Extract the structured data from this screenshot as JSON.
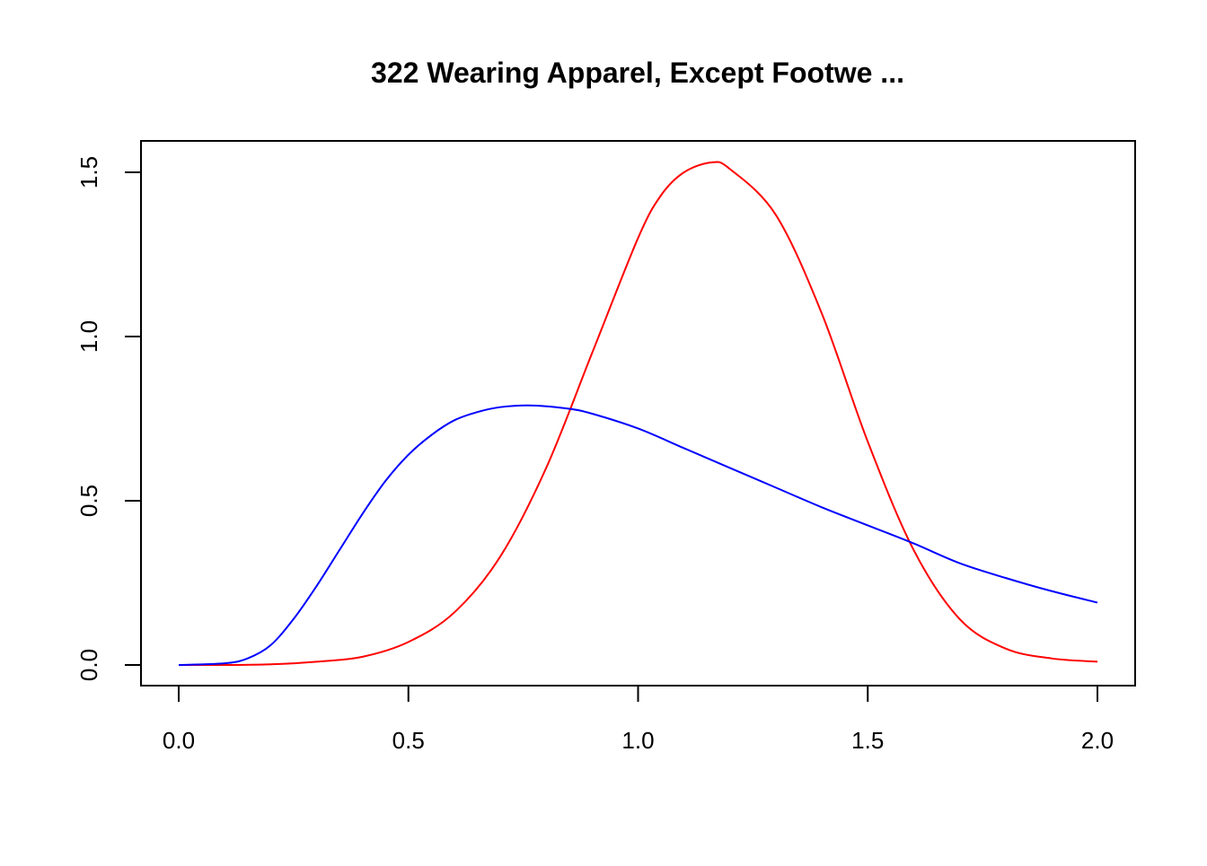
{
  "chart_data": {
    "type": "line",
    "title": "322 Wearing Apparel, Except Footwe ...",
    "xlabel": "",
    "ylabel": "",
    "xlim": [
      0.0,
      2.0
    ],
    "ylim": [
      0.0,
      1.5
    ],
    "x_ticks": [
      "0.0",
      "0.5",
      "1.0",
      "1.5",
      "2.0"
    ],
    "y_ticks": [
      "0.0",
      "0.5",
      "1.0",
      "1.5"
    ],
    "grid": false,
    "legend": "none",
    "series": [
      {
        "color": "#ff0000",
        "x": [
          0.0,
          0.1,
          0.2,
          0.3,
          0.4,
          0.5,
          0.6,
          0.7,
          0.8,
          0.9,
          1.0,
          1.05,
          1.1,
          1.16,
          1.2,
          1.3,
          1.4,
          1.5,
          1.6,
          1.7,
          1.8,
          1.9,
          2.0
        ],
        "y": [
          0.0,
          0.0,
          0.002,
          0.01,
          0.025,
          0.07,
          0.16,
          0.33,
          0.6,
          0.95,
          1.3,
          1.43,
          1.5,
          1.53,
          1.51,
          1.37,
          1.07,
          0.68,
          0.35,
          0.14,
          0.05,
          0.02,
          0.01
        ]
      },
      {
        "color": "#0000ff",
        "x": [
          0.0,
          0.1,
          0.15,
          0.2,
          0.25,
          0.3,
          0.35,
          0.4,
          0.45,
          0.5,
          0.55,
          0.6,
          0.65,
          0.7,
          0.77,
          0.85,
          0.9,
          1.0,
          1.1,
          1.2,
          1.3,
          1.4,
          1.5,
          1.6,
          1.7,
          1.8,
          1.9,
          2.0
        ],
        "y": [
          0.0,
          0.005,
          0.02,
          0.06,
          0.14,
          0.24,
          0.35,
          0.46,
          0.56,
          0.64,
          0.7,
          0.745,
          0.77,
          0.785,
          0.79,
          0.78,
          0.765,
          0.72,
          0.66,
          0.6,
          0.54,
          0.48,
          0.425,
          0.37,
          0.31,
          0.265,
          0.225,
          0.19
        ]
      }
    ]
  }
}
